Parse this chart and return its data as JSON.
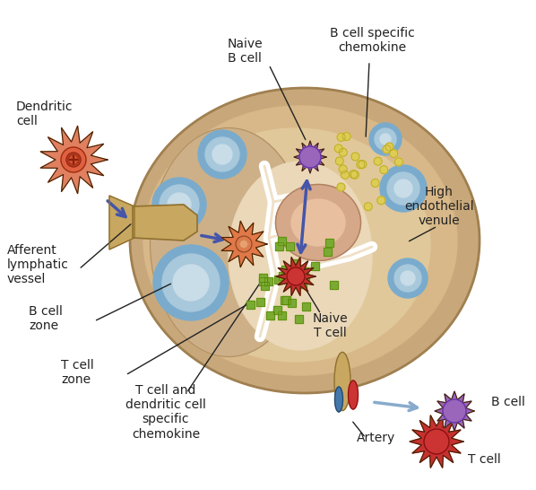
{
  "bg_color": "#ffffff",
  "node_outer_color": "#c8a87a",
  "node_capsule_color": "#d4b896",
  "b_zone_color": "#c8aa82",
  "t_zone_color": "#e8d8bc",
  "follicle_blue_color": "#7aabcc",
  "follicle_ring_color": "#a8c8dc",
  "follicle_center_color": "#c8dde8",
  "germinal_color": "#ddb89a",
  "germinal_inner_color": "#e8c8b0",
  "purple_cell_color": "#9966bb",
  "purple_cell_dark": "#6633aa",
  "red_cell_color": "#cc3333",
  "red_cell_dark": "#881111",
  "orange_cell_color": "#e07848",
  "orange_cell_dark": "#c05030",
  "tan_vessel_color": "#c8a860",
  "arrow_blue_color": "#4455aa",
  "arrow_light_color": "#88aacc",
  "line_color": "#222222",
  "green_sq_color": "#7aaa33",
  "yellow_dot_color": "#ddcc55",
  "yellow_dot_dark": "#bbaa22",
  "white_color": "#ffffff",
  "spike_outline": "#442200",
  "labels": {
    "dendritic_cell": "Dendritic\ncell",
    "afferent": "Afferent\nlymphatic\nvessel",
    "b_cell_zone": "B cell\nzone",
    "t_cell_zone": "T cell\nzone",
    "naive_b_cell": "Naive\nB cell",
    "b_cell_chemokine": "B cell specific\nchemokine",
    "naive_t_cell": "Naive\nT cell",
    "t_cell_chemokine": "T cell and\ndendritic cell\nspecific\nchemokine",
    "artery": "Artery",
    "high_endothelial": "High\nendothelial\nvenule",
    "b_cell": "B cell",
    "t_cell": "T cell"
  }
}
